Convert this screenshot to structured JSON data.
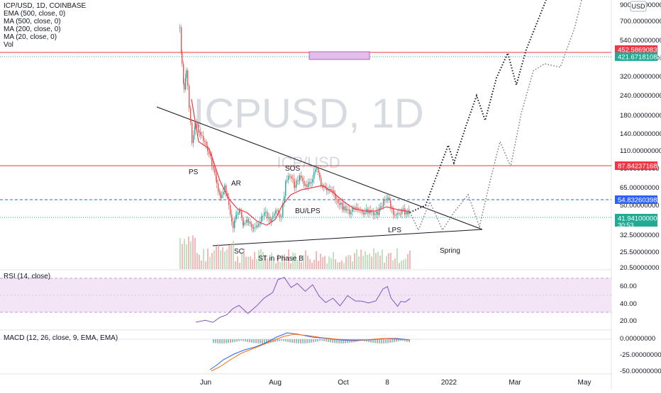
{
  "header": {
    "symbol_line": "ICP/USD, 1D, COINBASE",
    "indicators": [
      "EMA (500, close, 0)",
      "MA (500, close, 0)",
      "MA (200, close, 0)",
      "MA (20, close, 0)",
      "Vol"
    ],
    "currency_badge": "USD"
  },
  "watermark": {
    "main": "ICPUSD, 1D",
    "sub": "ICP/USD"
  },
  "price_axis": {
    "ticks": [
      "900.00000000",
      "700.00000000",
      "540.00000000",
      "420.00000000",
      "320.00000000",
      "240.00000000",
      "180.00000000",
      "140.00000000",
      "110.00000000",
      "85.00000000",
      "65.00000000",
      "50.00000000",
      "32.50000000",
      "25.50000000",
      "20.50000000"
    ],
    "top_partial": "900.00000000"
  },
  "price_labels": [
    {
      "id": "level-452",
      "text": "452.58690837",
      "color": "#f23645"
    },
    {
      "id": "level-421",
      "text": "421.67181082",
      "color": "#22ab94"
    },
    {
      "id": "level-87",
      "text": "87.84237168",
      "color": "#f23645"
    },
    {
      "id": "level-54",
      "text": "54.83260398",
      "color": "#2962ff"
    },
    {
      "id": "level-last",
      "text": "41.94100000",
      "sub": "30:53",
      "color": "#22ab94"
    }
  ],
  "annotations": [
    "PS",
    "SC",
    "AR",
    "SOS",
    "BU/LPS",
    "ST in Phase B",
    "LPS",
    "Spring"
  ],
  "rsi": {
    "title": "RSI (14, close)",
    "ticks": [
      "60.00",
      "40.00",
      "20.00"
    ],
    "band": [
      30,
      70
    ]
  },
  "macd": {
    "title": "MACD (12, 26, close, 9, EMA, EMA)",
    "ticks": [
      "0.00000000",
      "-25.00000000",
      "-50.00000000"
    ]
  },
  "time_axis": [
    "Jun",
    "Aug",
    "Oct",
    "8",
    "2022",
    "Mar",
    "May"
  ],
  "colors": {
    "up": "#26a69a",
    "down": "#ef5350",
    "ma": "#f23645",
    "rsi_line": "#7e57c2",
    "macd_line": "#2962ff",
    "signal_line": "#ff6d00",
    "band_fill": "#f3e5f5"
  },
  "chart_data": {
    "type": "candlestick",
    "title": "ICP/USD, 1D, COINBASE",
    "ylim_log": [
      20.5,
      900
    ],
    "levels": [
      452.58690837,
      421.67181082,
      87.84237168,
      54.83260398,
      41.941
    ],
    "candles": [
      {
        "month": "2021-05",
        "close_range": [
          120,
          600
        ]
      },
      {
        "month": "2021-06",
        "close_range": [
          30,
          90
        ]
      },
      {
        "month": "2021-07",
        "close_range": [
          28,
          45
        ]
      },
      {
        "month": "2021-08",
        "close_range": [
          45,
          80
        ]
      },
      {
        "month": "2021-09",
        "close_range": [
          50,
          70
        ]
      },
      {
        "month": "2021-10",
        "close_range": [
          42,
          60
        ]
      },
      {
        "month": "2021-11",
        "close_range": [
          38,
          55
        ]
      },
      {
        "month": "2021-12",
        "close_range": [
          38,
          48
        ]
      }
    ],
    "rsi_range": [
      20,
      70
    ],
    "macd_range": [
      -50,
      5
    ]
  }
}
